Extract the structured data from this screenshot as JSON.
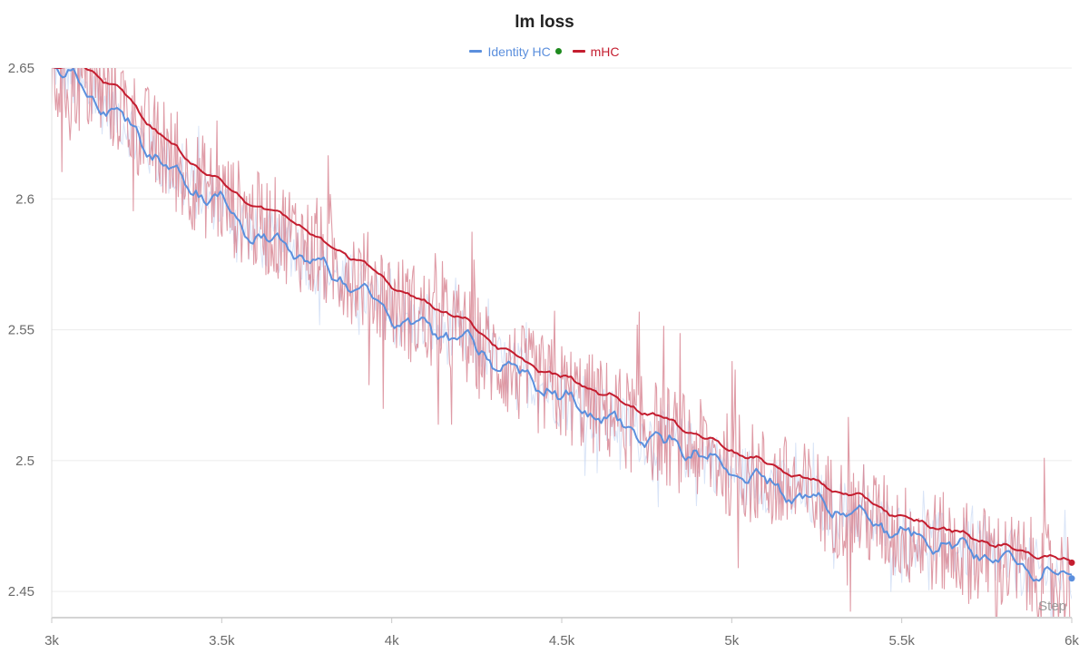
{
  "chart_data": {
    "type": "line",
    "title": "lm loss",
    "xlabel": "Step",
    "ylabel": "",
    "xlim": [
      3000,
      6000
    ],
    "ylim": [
      2.44,
      2.65
    ],
    "x_ticks": [
      3000,
      3500,
      4000,
      4500,
      5000,
      5500,
      6000
    ],
    "x_tick_labels": [
      "3k",
      "3.5k",
      "4k",
      "4.5k",
      "5k",
      "5.5k",
      "6k"
    ],
    "y_ticks": [
      2.45,
      2.5,
      2.55,
      2.6,
      2.65
    ],
    "y_tick_labels": [
      "2.45",
      "2.5",
      "2.55",
      "2.6",
      "2.65"
    ],
    "grid": true,
    "legend_position": "top-center",
    "series": [
      {
        "name": "Identity HC",
        "color": "#5b8fdd",
        "raw_color": "#c9d9f3",
        "marker_color": "#1e8a1e",
        "x": [
          3000,
          3100,
          3200,
          3300,
          3400,
          3500,
          3600,
          3700,
          3800,
          3900,
          4000,
          4100,
          4200,
          4300,
          4400,
          4500,
          4600,
          4700,
          4800,
          4900,
          5000,
          5100,
          5200,
          5300,
          5400,
          5500,
          5600,
          5700,
          5800,
          5900,
          6000
        ],
        "smoothed": [
          2.653,
          2.64,
          2.632,
          2.617,
          2.605,
          2.598,
          2.585,
          2.582,
          2.573,
          2.566,
          2.555,
          2.551,
          2.547,
          2.538,
          2.532,
          2.524,
          2.518,
          2.512,
          2.507,
          2.503,
          2.496,
          2.492,
          2.486,
          2.482,
          2.478,
          2.472,
          2.469,
          2.466,
          2.462,
          2.458,
          2.455
        ],
        "final_value": 2.455
      },
      {
        "name": "mHC",
        "color": "#c41d2f",
        "raw_color": "#d47a88",
        "x": [
          3000,
          3100,
          3200,
          3300,
          3400,
          3500,
          3600,
          3700,
          3800,
          3900,
          4000,
          4100,
          4200,
          4300,
          4400,
          4500,
          4600,
          4700,
          4800,
          4900,
          5000,
          5100,
          5200,
          5300,
          5400,
          5500,
          5600,
          5700,
          5800,
          5900,
          6000
        ],
        "smoothed": [
          2.651,
          2.65,
          2.642,
          2.627,
          2.615,
          2.606,
          2.597,
          2.593,
          2.583,
          2.577,
          2.567,
          2.56,
          2.555,
          2.545,
          2.537,
          2.532,
          2.527,
          2.521,
          2.516,
          2.51,
          2.504,
          2.499,
          2.494,
          2.489,
          2.485,
          2.478,
          2.475,
          2.471,
          2.467,
          2.464,
          2.461
        ],
        "final_value": 2.461
      }
    ]
  }
}
